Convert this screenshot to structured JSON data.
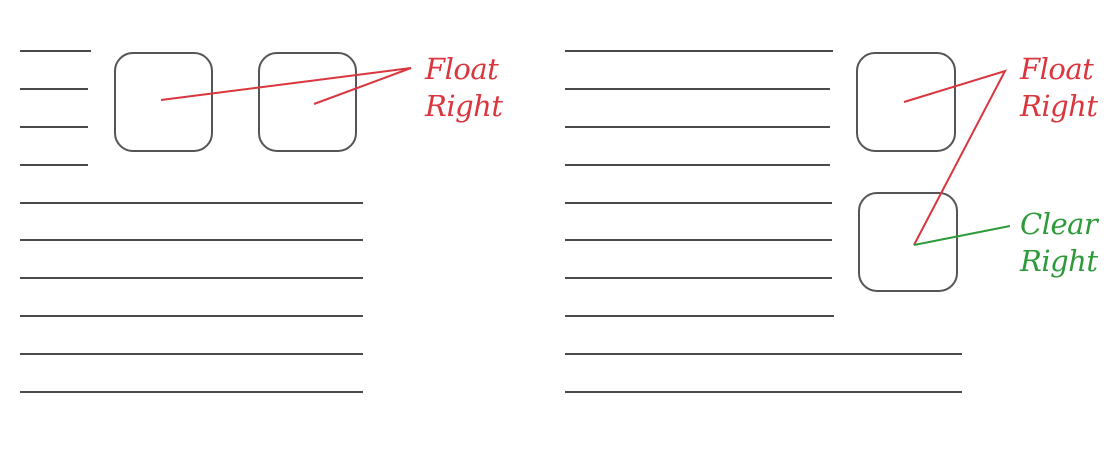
{
  "left_example": {
    "label_line1": "Float",
    "label_line2": "Right",
    "label_color": "#d9363e"
  },
  "right_example": {
    "float_label_line1": "Float",
    "float_label_line2": "Right",
    "float_color": "#d9363e",
    "clear_label_line1": "Clear",
    "clear_label_line2": "Right",
    "clear_color": "#2e9a3a"
  }
}
